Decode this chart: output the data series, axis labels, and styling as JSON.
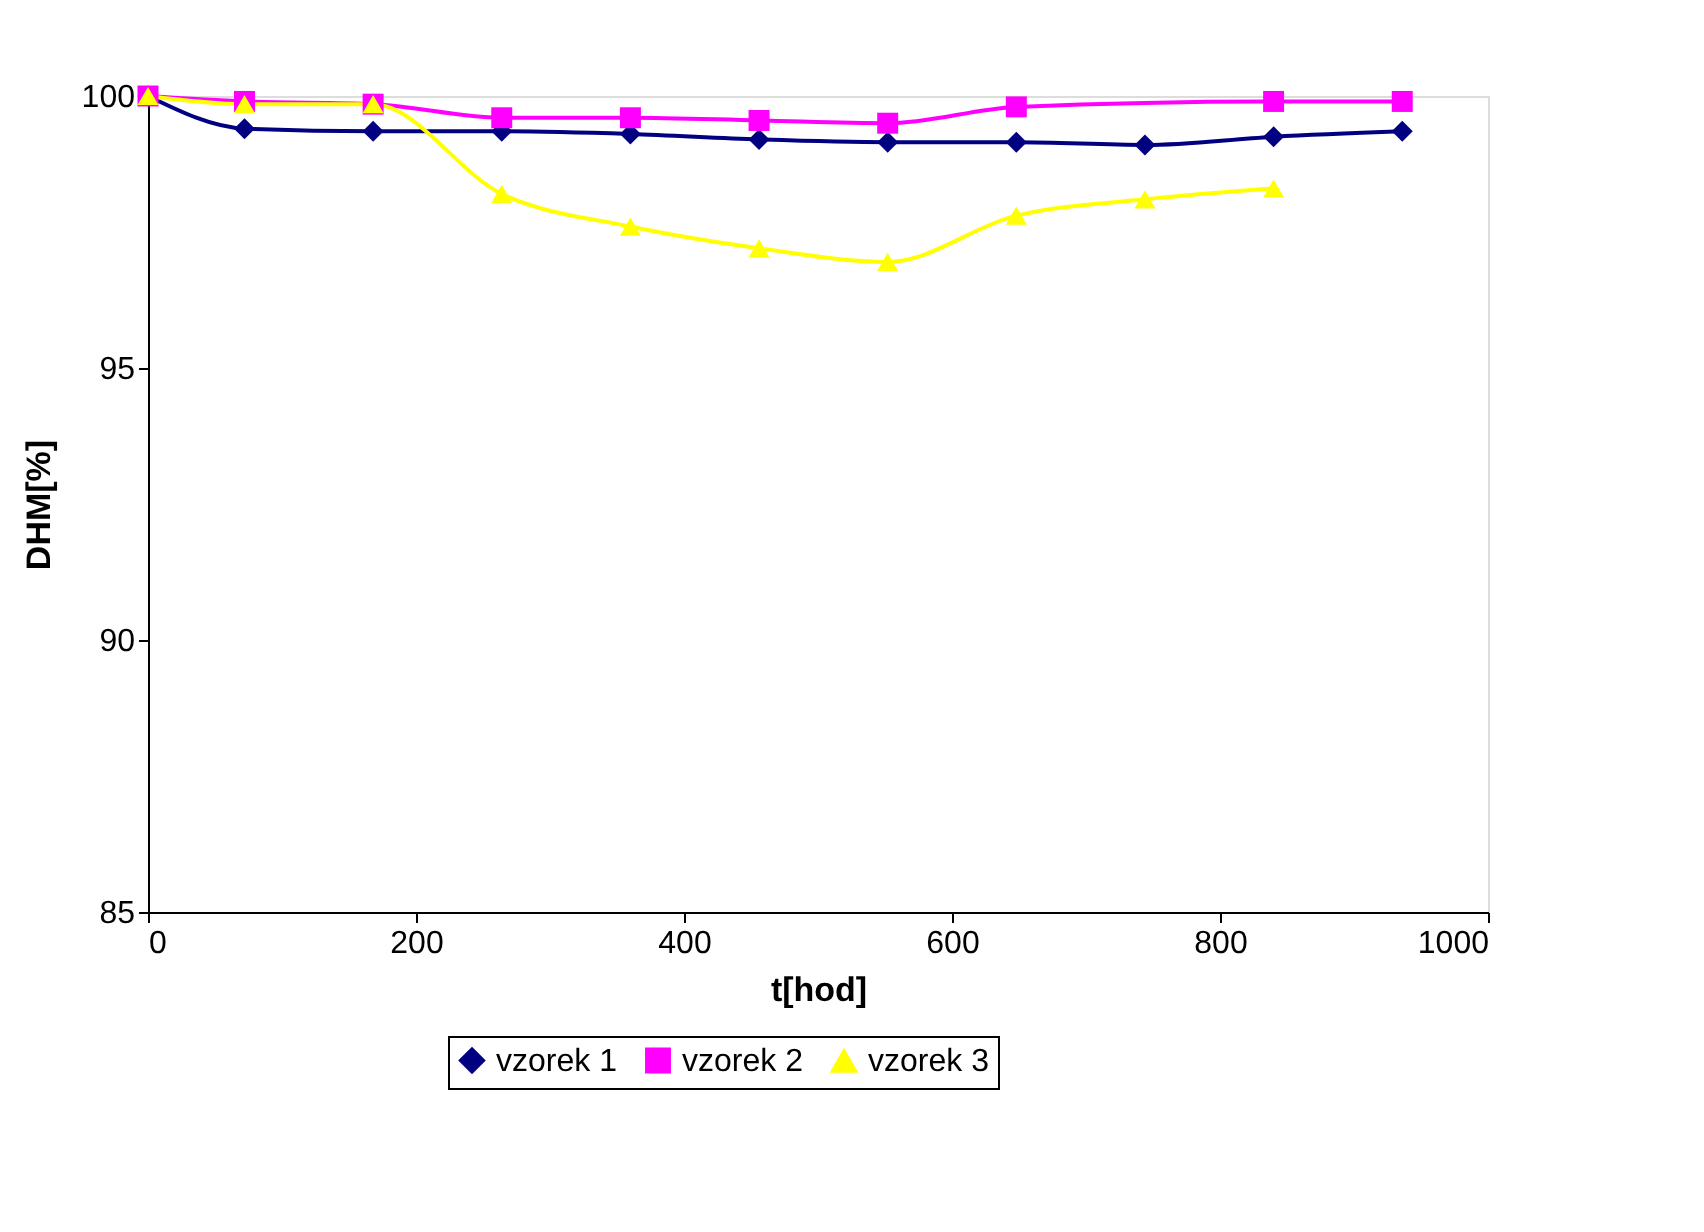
{
  "chart_data": {
    "type": "line",
    "xlabel": "t[hod]",
    "ylabel": "DHM[%]",
    "xlim": [
      0,
      1000
    ],
    "xticks": [
      0,
      200,
      400,
      600,
      800,
      1000
    ],
    "ylim": [
      85,
      100
    ],
    "yticks": [
      85,
      90,
      95,
      100
    ],
    "grid": false,
    "legend": "bottom",
    "line_style": "solid",
    "series": [
      {
        "name": "vzorek 1",
        "color": "#000080",
        "marker": "diamond",
        "x": [
          0,
          72,
          168,
          264,
          360,
          456,
          552,
          648,
          744,
          840,
          936
        ],
        "values": [
          100,
          99.4,
          99.35,
          99.35,
          99.3,
          99.2,
          99.15,
          99.15,
          99.1,
          99.25,
          99.35
        ]
      },
      {
        "name": "vzorek 2",
        "color": "#ff00ff",
        "marker": "square",
        "x": [
          0,
          72,
          168,
          264,
          360,
          456,
          552,
          648,
          840,
          936
        ],
        "values": [
          100,
          99.9,
          99.85,
          99.6,
          99.6,
          99.55,
          99.5,
          99.8,
          99.9,
          99.9
        ]
      },
      {
        "name": "vzorek 3",
        "color": "#ffff00",
        "marker": "triangle",
        "x": [
          0,
          72,
          168,
          264,
          360,
          456,
          552,
          648,
          744,
          840
        ],
        "values": [
          100,
          99.85,
          99.85,
          98.2,
          97.6,
          97.2,
          96.95,
          97.8,
          98.1,
          98.3
        ]
      }
    ]
  }
}
